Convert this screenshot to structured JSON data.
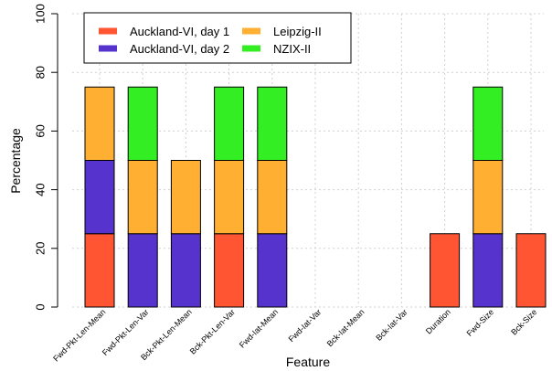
{
  "chart_data": {
    "type": "bar",
    "stacked": true,
    "categories": [
      "Fwd-Pkt-Len-Mean",
      "Fwd-Pkt-Len-Var",
      "Bck-Pkt-Len-Mean",
      "Bck-Pkt-Len-Var",
      "Fwd-Iat-Mean",
      "Fwd-Iat-Var",
      "Bck-Iat-Mean",
      "Bck-Iat-Var",
      "Duration",
      "Fwd-Size",
      "Bck-Size"
    ],
    "series": [
      {
        "name": "Auckland-VI, day 1",
        "color": "#ff5533",
        "values": [
          25,
          0,
          0,
          25,
          0,
          0,
          0,
          0,
          25,
          0,
          25
        ]
      },
      {
        "name": "Auckland-VI, day 2",
        "color": "#5533cc",
        "values": [
          25,
          25,
          25,
          0,
          25,
          0,
          0,
          0,
          0,
          25,
          0
        ]
      },
      {
        "name": "Leipzig-II",
        "color": "#ffb033",
        "values": [
          25,
          25,
          25,
          25,
          25,
          0,
          0,
          0,
          0,
          25,
          0
        ]
      },
      {
        "name": "NZIX-II",
        "color": "#33ee22",
        "values": [
          0,
          25,
          0,
          25,
          25,
          0,
          0,
          0,
          0,
          25,
          0
        ]
      }
    ],
    "xlabel": "Feature",
    "ylabel": "Percentage",
    "ylim": [
      0,
      100
    ],
    "yticks": [
      0,
      20,
      40,
      60,
      80,
      100
    ],
    "grid": true,
    "legend_position": "top-left"
  }
}
